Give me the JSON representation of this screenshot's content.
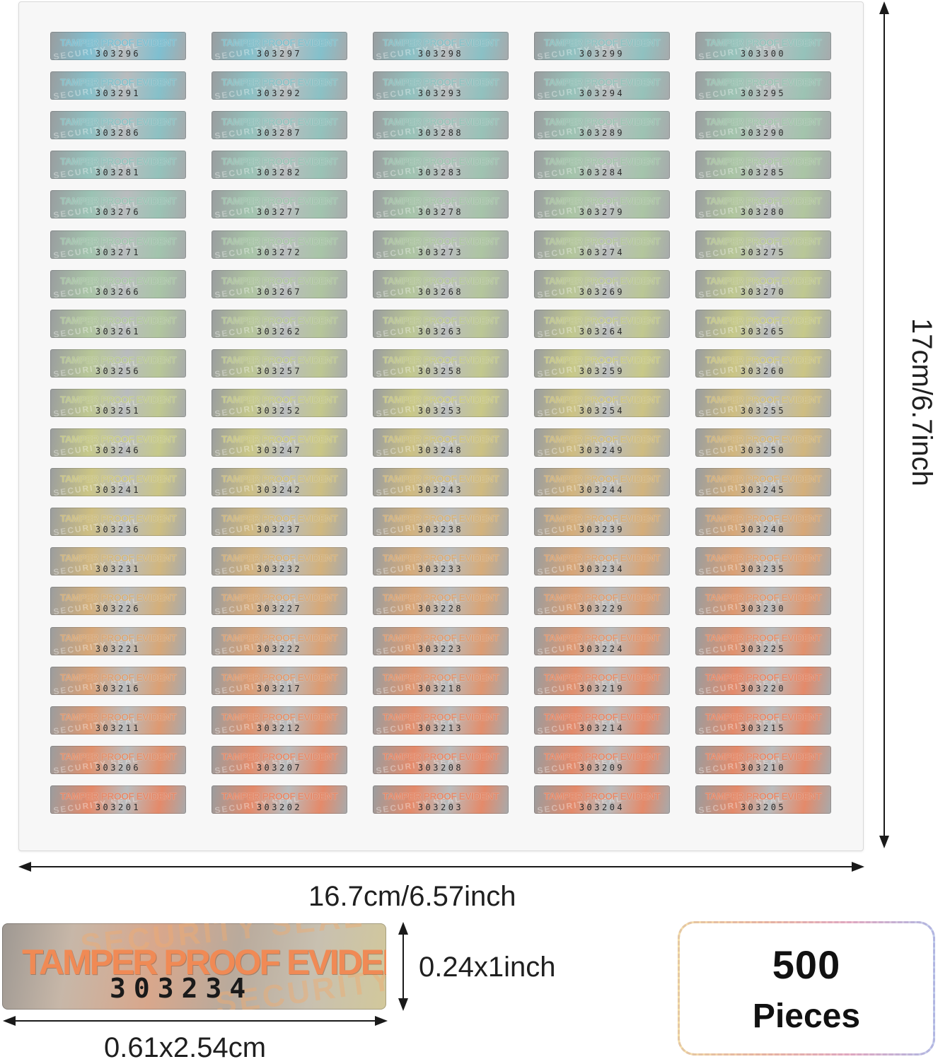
{
  "labels": {
    "text": "TAMPER PROOF EVIDENT",
    "watermark": "SECURITY SEAL",
    "rows": [
      [
        "303296",
        "303297",
        "303298",
        "303299",
        "303300"
      ],
      [
        "303291",
        "303292",
        "303293",
        "303294",
        "303295"
      ],
      [
        "303286",
        "303287",
        "303288",
        "303289",
        "303290"
      ],
      [
        "303281",
        "303282",
        "303283",
        "303284",
        "303285"
      ],
      [
        "303276",
        "303277",
        "303278",
        "303279",
        "303280"
      ],
      [
        "303271",
        "303272",
        "303273",
        "303274",
        "303275"
      ],
      [
        "303266",
        "303267",
        "303268",
        "303269",
        "303270"
      ],
      [
        "303261",
        "303262",
        "303263",
        "303264",
        "303265"
      ],
      [
        "303256",
        "303257",
        "303258",
        "303259",
        "303260"
      ],
      [
        "303251",
        "303252",
        "303253",
        "303254",
        "303255"
      ],
      [
        "303246",
        "303247",
        "303248",
        "303249",
        "303250"
      ],
      [
        "303241",
        "303242",
        "303243",
        "303244",
        "303245"
      ],
      [
        "303236",
        "303237",
        "303238",
        "303239",
        "303240"
      ],
      [
        "303231",
        "303232",
        "303233",
        "303234",
        "303235"
      ],
      [
        "303226",
        "303227",
        "303228",
        "303229",
        "303230"
      ],
      [
        "303221",
        "303222",
        "303223",
        "303224",
        "303225"
      ],
      [
        "303216",
        "303217",
        "303218",
        "303219",
        "303220"
      ],
      [
        "303211",
        "303212",
        "303213",
        "303214",
        "303215"
      ],
      [
        "303206",
        "303207",
        "303208",
        "303209",
        "303210"
      ],
      [
        "303201",
        "303202",
        "303203",
        "303204",
        "303205"
      ]
    ]
  },
  "dimensions": {
    "sheet_width": "16.7cm/6.57inch",
    "sheet_height": "17cm/6.7inch",
    "label_height": "0.24x1inch",
    "label_width": "0.61x2.54cm"
  },
  "sample_label": {
    "text": "TAMPER PROOF EVIDENT",
    "number": "303234",
    "watermark": "SECURITY SEAL"
  },
  "pieces": {
    "count": "500",
    "word": "Pieces"
  },
  "colors": {
    "hologram_top": "#7fbfd0",
    "hologram_mid": "#c9c986",
    "hologram_bottom": "#e48a6a"
  }
}
